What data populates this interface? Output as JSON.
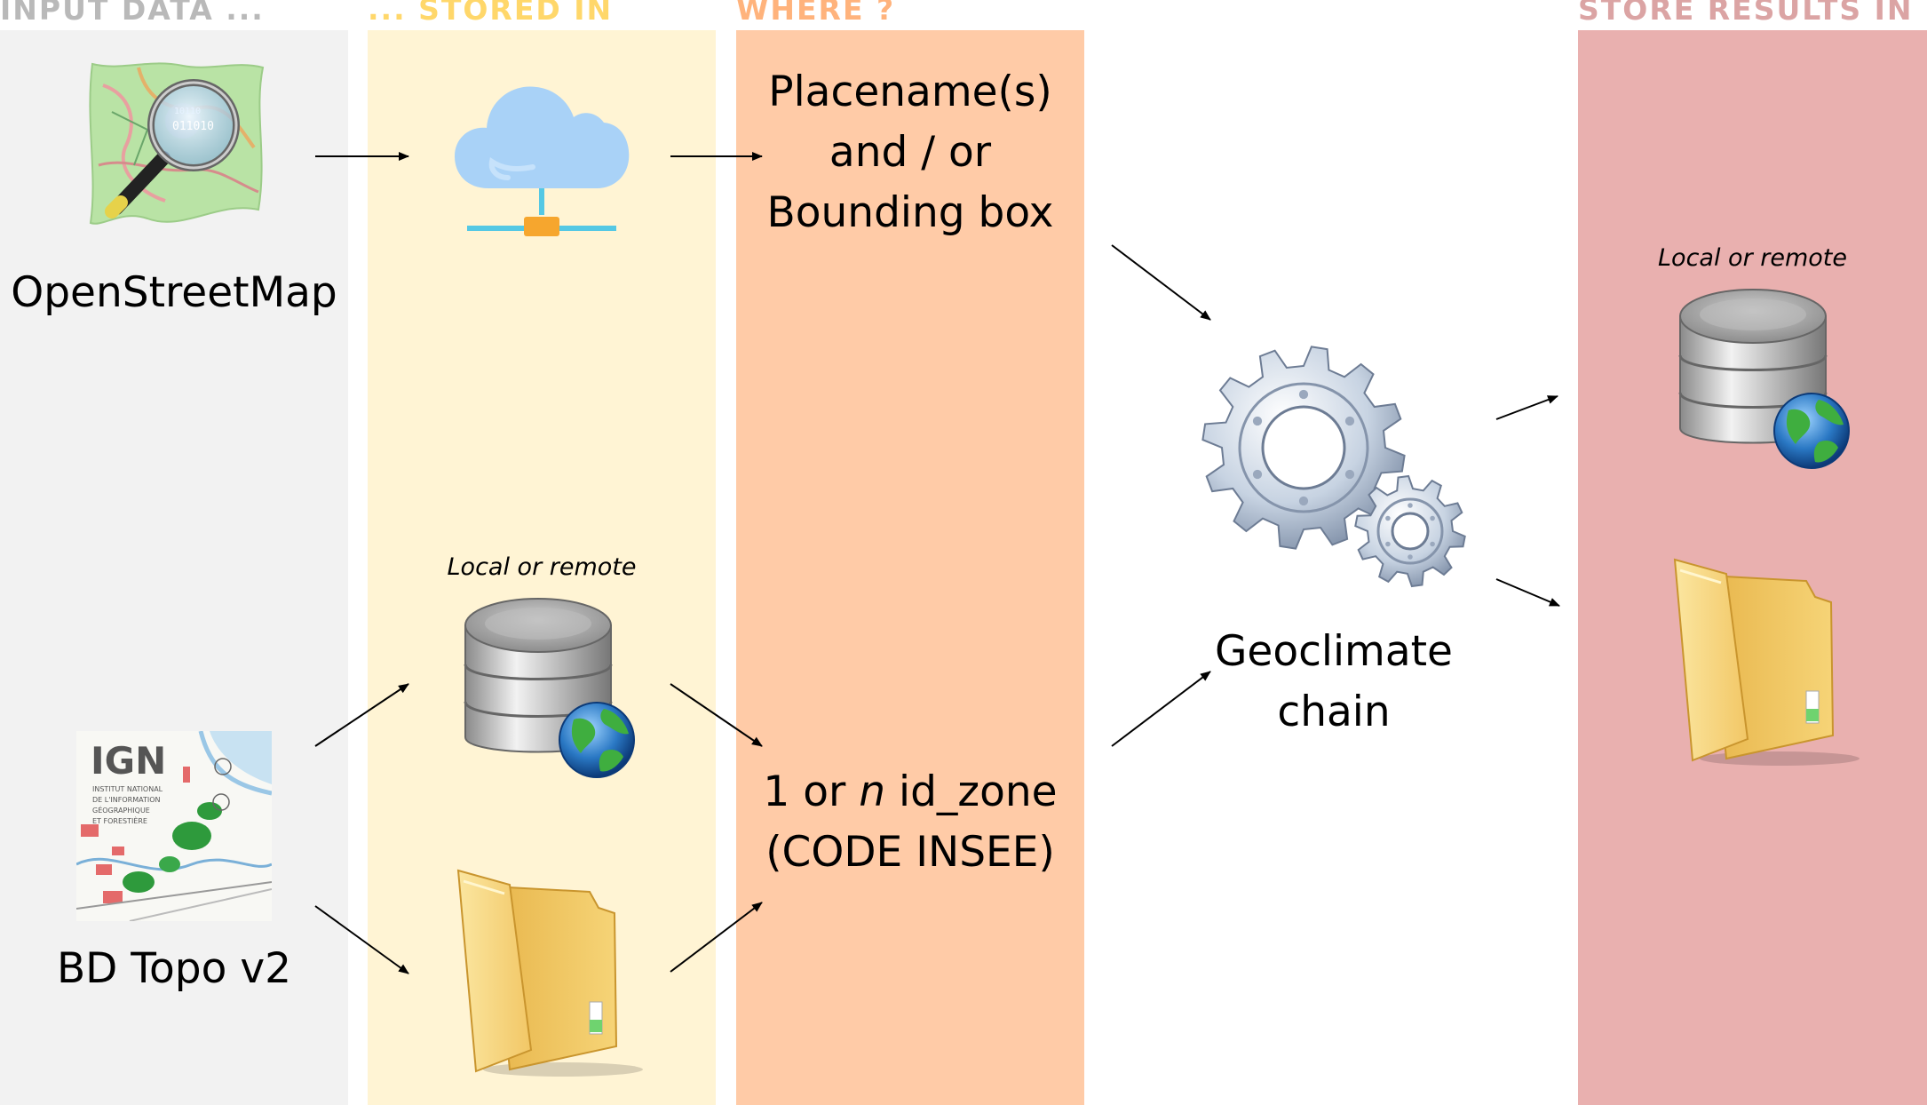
{
  "headers": {
    "input": "INPUT DATA ...",
    "stored": "... STORED IN",
    "where": "WHERE ?",
    "results": "STORE RESULTS IN"
  },
  "sources": {
    "osm": "OpenStreetMap",
    "bdtopo": "BD Topo v2"
  },
  "storage": {
    "db_label": "Local or remote"
  },
  "where": {
    "top_line1": "Placename(s)",
    "top_line2": "and / or",
    "top_line3": "Bounding box",
    "bottom_pre": "1 or ",
    "bottom_italic": "n",
    "bottom_post": " id_zone",
    "bottom_line2": "(CODE INSEE)"
  },
  "process": {
    "line1": "Geoclimate",
    "line2": "chain"
  },
  "results": {
    "db_label": "Local or remote"
  },
  "ign_logo": {
    "mark": "IGN",
    "lines": [
      "INSTITUT NATIONAL",
      "DE L'INFORMATION",
      "GÉOGRAPHIQUE",
      "ET FORESTIÈRE"
    ]
  },
  "colors": {
    "input_bg": "#f2f2f2",
    "stored_bg": "#fff4d4",
    "where_bg": "#ffcba7",
    "results_bg": "#e9b0af"
  },
  "icons": [
    "osm-map-icon",
    "ign-map-icon",
    "cloud-server-icon",
    "database-globe-icon",
    "folder-icon",
    "gears-icon"
  ]
}
